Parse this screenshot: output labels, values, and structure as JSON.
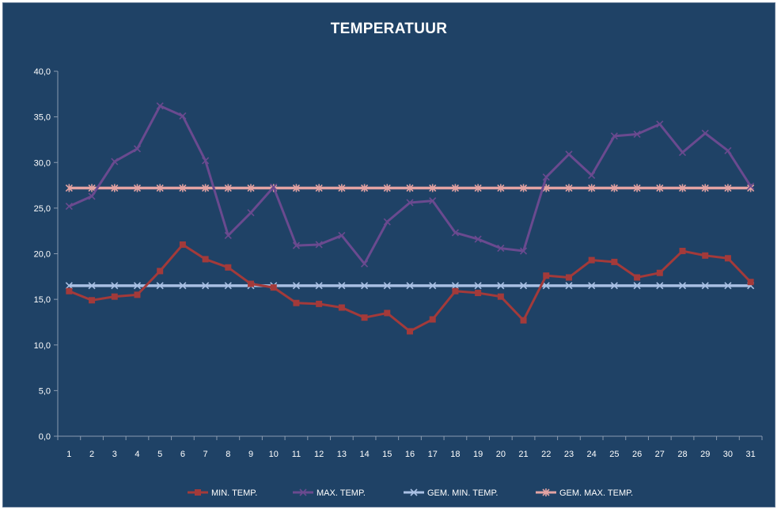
{
  "chart_data": {
    "type": "line",
    "title": "TEMPERATUUR",
    "xlabel": "",
    "ylabel": "",
    "ylim": [
      0,
      40
    ],
    "yticks": [
      "0,0",
      "5,0",
      "10,0",
      "15,0",
      "20,0",
      "25,0",
      "30,0",
      "35,0",
      "40,0"
    ],
    "categories": [
      "1",
      "2",
      "3",
      "4",
      "5",
      "6",
      "7",
      "8",
      "9",
      "10",
      "11",
      "12",
      "13",
      "14",
      "15",
      "16",
      "17",
      "18",
      "19",
      "20",
      "21",
      "22",
      "23",
      "24",
      "25",
      "26",
      "27",
      "28",
      "29",
      "30",
      "31"
    ],
    "grid": false,
    "legend_position": "bottom",
    "series": [
      {
        "name": "MIN. TEMP.",
        "color": "#a33a3a",
        "marker": "square",
        "values": [
          15.9,
          14.9,
          15.3,
          15.5,
          18.1,
          21.0,
          19.4,
          18.5,
          16.7,
          16.3,
          14.6,
          14.5,
          14.1,
          13.0,
          13.5,
          11.5,
          12.8,
          15.9,
          15.7,
          15.3,
          12.7,
          17.6,
          17.4,
          19.3,
          19.1,
          17.4,
          17.9,
          20.3,
          19.8,
          19.5,
          16.9
        ]
      },
      {
        "name": "MAX. TEMP.",
        "color": "#6a4a8f",
        "marker": "x",
        "values": [
          25.2,
          26.3,
          30.1,
          31.5,
          36.2,
          35.1,
          30.2,
          22.0,
          24.5,
          27.3,
          20.9,
          21.0,
          22.0,
          18.9,
          23.5,
          25.6,
          25.8,
          22.3,
          21.6,
          20.6,
          20.3,
          28.4,
          30.9,
          28.6,
          32.9,
          33.1,
          34.2,
          31.1,
          33.2,
          31.3,
          27.4
        ]
      },
      {
        "name": "GEM. MIN. TEMP.",
        "color": "#a9c0e4",
        "marker": "x",
        "values": [
          16.5,
          16.5,
          16.5,
          16.5,
          16.5,
          16.5,
          16.5,
          16.5,
          16.5,
          16.5,
          16.5,
          16.5,
          16.5,
          16.5,
          16.5,
          16.5,
          16.5,
          16.5,
          16.5,
          16.5,
          16.5,
          16.5,
          16.5,
          16.5,
          16.5,
          16.5,
          16.5,
          16.5,
          16.5,
          16.5,
          16.5
        ]
      },
      {
        "name": "GEM. MAX. TEMP.",
        "color": "#e3a3a3",
        "marker": "star",
        "values": [
          27.2,
          27.2,
          27.2,
          27.2,
          27.2,
          27.2,
          27.2,
          27.2,
          27.2,
          27.2,
          27.2,
          27.2,
          27.2,
          27.2,
          27.2,
          27.2,
          27.2,
          27.2,
          27.2,
          27.2,
          27.2,
          27.2,
          27.2,
          27.2,
          27.2,
          27.2,
          27.2,
          27.2,
          27.2,
          27.2,
          27.2
        ]
      }
    ]
  }
}
